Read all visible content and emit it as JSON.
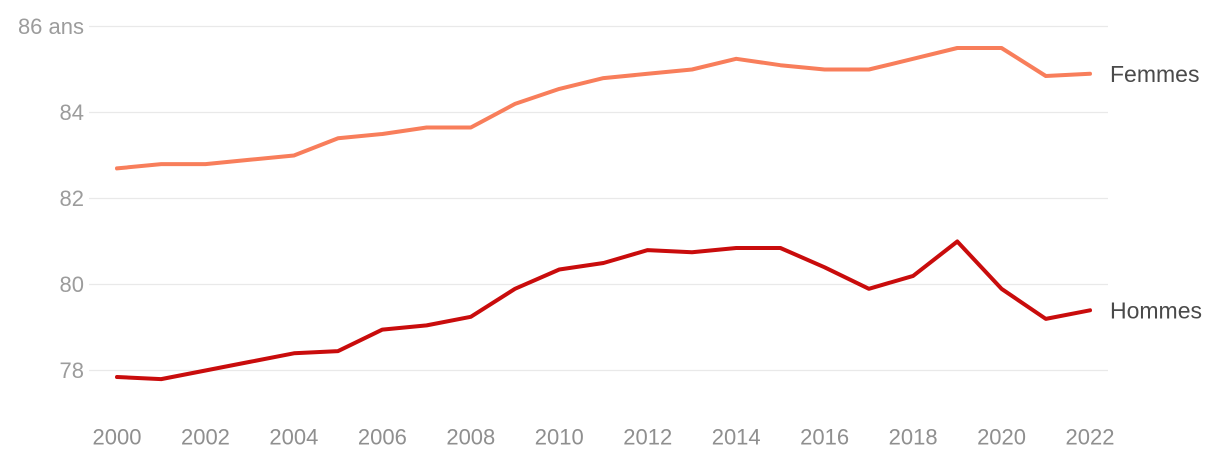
{
  "chart_data": {
    "type": "line",
    "title": "",
    "unit_suffix": "ans",
    "x": [
      2000,
      2001,
      2002,
      2003,
      2004,
      2005,
      2006,
      2007,
      2008,
      2009,
      2010,
      2011,
      2012,
      2013,
      2014,
      2015,
      2016,
      2017,
      2018,
      2019,
      2020,
      2021,
      2022
    ],
    "series": [
      {
        "name": "Femmes",
        "color": "#f87e5b",
        "values": [
          82.7,
          82.8,
          82.8,
          82.9,
          83.0,
          83.4,
          83.5,
          83.65,
          83.65,
          84.2,
          84.55,
          84.8,
          84.9,
          85.0,
          85.25,
          85.1,
          85.0,
          85.0,
          85.25,
          85.5,
          85.5,
          84.85,
          84.9
        ]
      },
      {
        "name": "Hommes",
        "color": "#c90c0c",
        "values": [
          77.85,
          77.8,
          78.0,
          78.2,
          78.4,
          78.45,
          78.95,
          79.05,
          79.25,
          79.9,
          80.35,
          80.5,
          80.8,
          80.75,
          80.85,
          80.85,
          80.4,
          79.9,
          80.2,
          81.0,
          79.9,
          79.2,
          79.4
        ]
      }
    ],
    "yticks": [
      {
        "value": 86,
        "label": "86 ans"
      },
      {
        "value": 84,
        "label": "84"
      },
      {
        "value": 82,
        "label": "82"
      },
      {
        "value": 80,
        "label": "80"
      },
      {
        "value": 78,
        "label": "78"
      }
    ],
    "xticks": [
      2000,
      2002,
      2004,
      2006,
      2008,
      2010,
      2012,
      2014,
      2016,
      2018,
      2020,
      2022
    ],
    "ylim": [
      77.3,
      86
    ],
    "xlabel": "",
    "ylabel": "",
    "grid": true,
    "legend_position": "line-end-labels-right"
  },
  "colors": {
    "background": "#ffffff",
    "gridline": "#e9e9e9",
    "y_tick_label": "#9c9c9c",
    "x_tick_label": "#8f8f8f",
    "series_label": "#4a4a4a"
  }
}
